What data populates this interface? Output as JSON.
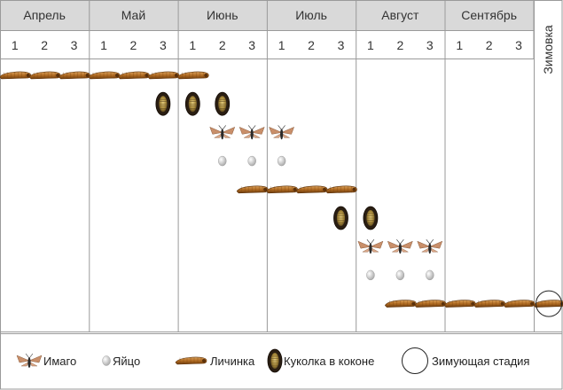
{
  "months": [
    "Апрель",
    "Май",
    "Июнь",
    "Июль",
    "Август",
    "Сентябрь"
  ],
  "decades": [
    "1",
    "2",
    "3"
  ],
  "winter_label": "Зимовка",
  "stages": {
    "larva": {
      "label": "Личинка"
    },
    "pupa": {
      "label": "Куколка в коконе"
    },
    "adult": {
      "label": "Имаго"
    },
    "egg": {
      "label": "Яйцо"
    },
    "winter": {
      "label": "Зимующая стадия"
    }
  },
  "legend_order": [
    "adult",
    "egg",
    "larva",
    "pupa",
    "winter"
  ],
  "rows": [
    {
      "stage": "larva",
      "cells": [
        [
          0,
          0
        ],
        [
          0,
          1
        ],
        [
          0,
          2
        ],
        [
          1,
          0
        ],
        [
          1,
          1
        ],
        [
          1,
          2
        ],
        [
          2,
          0
        ]
      ]
    },
    {
      "stage": "pupa",
      "cells": [
        [
          1,
          2
        ],
        [
          2,
          0
        ],
        [
          2,
          1
        ]
      ]
    },
    {
      "stage": "adult",
      "cells": [
        [
          2,
          1
        ],
        [
          2,
          2
        ],
        [
          3,
          0
        ]
      ]
    },
    {
      "stage": "egg",
      "cells": [
        [
          2,
          1
        ],
        [
          2,
          2
        ],
        [
          3,
          0
        ]
      ]
    },
    {
      "stage": "larva",
      "cells": [
        [
          2,
          2
        ],
        [
          3,
          0
        ],
        [
          3,
          1
        ],
        [
          3,
          2
        ]
      ]
    },
    {
      "stage": "pupa",
      "cells": [
        [
          3,
          2
        ],
        [
          4,
          0
        ]
      ]
    },
    {
      "stage": "adult",
      "cells": [
        [
          4,
          0
        ],
        [
          4,
          1
        ],
        [
          4,
          2
        ]
      ]
    },
    {
      "stage": "egg",
      "cells": [
        [
          4,
          0
        ],
        [
          4,
          1
        ],
        [
          4,
          2
        ]
      ]
    },
    {
      "stage": "larva",
      "cells": [
        [
          4,
          1
        ],
        [
          4,
          2
        ],
        [
          5,
          0
        ],
        [
          5,
          1
        ],
        [
          5,
          2
        ]
      ],
      "winter": true
    }
  ],
  "colors": {
    "header_bg": "#d9d9d9",
    "grid": "#9a9a9a",
    "larva": "#a8641e",
    "pupa": "#3a2a1a",
    "adult_wing": "#c98f6a",
    "egg": "#c8c8c8"
  }
}
